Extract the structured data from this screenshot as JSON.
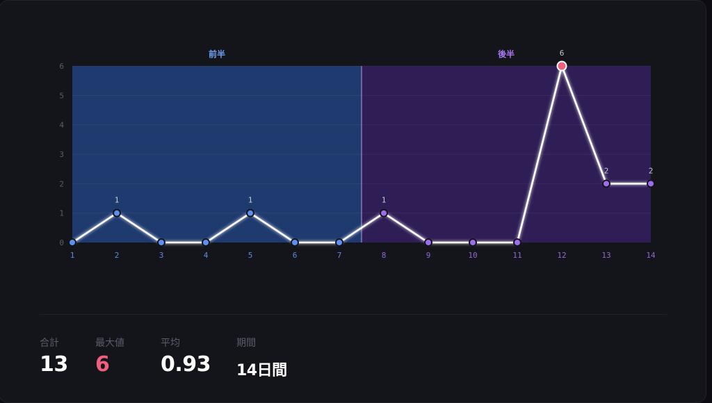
{
  "chart_data": {
    "type": "line",
    "x": [
      1,
      2,
      3,
      4,
      5,
      6,
      7,
      8,
      9,
      10,
      11,
      12,
      13,
      14
    ],
    "y": [
      0,
      1,
      0,
      0,
      1,
      0,
      0,
      1,
      0,
      0,
      0,
      6,
      2,
      2
    ],
    "ylim": [
      0,
      6
    ],
    "yticks": [
      0,
      1,
      2,
      3,
      4,
      5,
      6
    ],
    "grid": true,
    "regions": [
      {
        "label": "前半",
        "from": 1,
        "to": 7,
        "color": "#1e3a6e",
        "label_color": "#6fa1f5",
        "point_color": "#5b8ff0"
      },
      {
        "label": "後半",
        "from": 8,
        "to": 14,
        "color": "#2f1d55",
        "label_color": "#a679f2",
        "point_color": "#9b6ef0"
      }
    ],
    "max_point_color": "#f0607e",
    "line_color": "#ffffff"
  },
  "stats": {
    "total": {
      "label": "合計",
      "value": "13"
    },
    "max": {
      "label": "最大値",
      "value": "6"
    },
    "avg": {
      "label": "平均",
      "value": "0.93"
    },
    "period": {
      "label": "期間",
      "value": "14日間"
    }
  }
}
